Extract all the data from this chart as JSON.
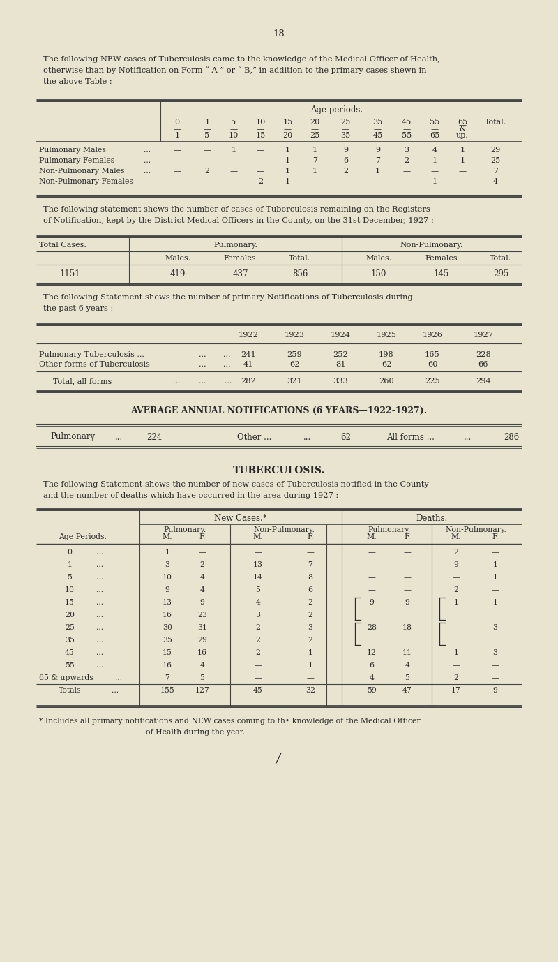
{
  "bg_color": "#e8e4d0",
  "text_color": "#2a2a2a",
  "page_number": "18",
  "intro_text1": "The following NEW cases of Tuberculosis came to the knowledge of the Medical Officer of Health,",
  "intro_text2": "otherwise than by Notification on Form “ A ” or “ B,” in addition to the primary cases shewn in",
  "intro_text3": "the above Table :—",
  "table1_age_header": "Age periods.",
  "table1_age_row1": [
    "0",
    "1",
    "5",
    "10",
    "15",
    "20",
    "25",
    "35",
    "45",
    "55",
    "65",
    "Total."
  ],
  "table1_age_row2": [
    "1",
    "5",
    "10",
    "15",
    "20",
    "25",
    "35",
    "45",
    "55",
    "65",
    "up."
  ],
  "table1_rows": [
    [
      "Pulmonary Males",
      "...",
      "—",
      "—",
      "1",
      "—",
      "1",
      "1",
      "9",
      "9",
      "3",
      "4",
      "1",
      "29"
    ],
    [
      "Pulmonary Females",
      "...",
      "—",
      "—",
      "—",
      "—",
      "1",
      "7",
      "6",
      "7",
      "2",
      "1",
      "1",
      "25"
    ],
    [
      "Non-Pulmonary Males",
      "...",
      "—",
      "2",
      "—",
      "—",
      "1",
      "1",
      "2",
      "1",
      "—",
      "—",
      "—",
      "7"
    ],
    [
      "Non-Pulmonary Females",
      "",
      "—",
      "—",
      "—",
      "2",
      "1",
      "—",
      "—",
      "—",
      "—",
      "1",
      "—",
      "4"
    ]
  ],
  "registers_text1": "The following statement shews the number of cases of Tuberculosis remaining on the Registers",
  "registers_text2": "of Notification, kept by the District Medical Officers in the County, on the 31st December, 1927 :—",
  "table2_values": [
    "1151",
    "419",
    "437",
    "856",
    "150",
    "145",
    "295"
  ],
  "years_text1": "The following Statement shews the number of primary Notifications of Tuberculosis during",
  "years_text2": "the past 6 years :—",
  "table3_years": [
    "1922",
    "1923",
    "1924",
    "1925",
    "1926",
    "1927"
  ],
  "table3_pul": [
    "241",
    "259",
    "252",
    "198",
    "165",
    "228"
  ],
  "table3_other": [
    "41",
    "62",
    "81",
    "62",
    "60",
    "66"
  ],
  "table3_total": [
    "282",
    "321",
    "333",
    "260",
    "225",
    "294"
  ],
  "avg_header": "AVERAGE ANNUAL NOTIFICATIONS (6 YEARS—1922-1927).",
  "tb_title": "TUBERCULOSIS.",
  "tb_text1": "The following Statement shows the number of new cases of Tuberculosis notified in the County",
  "tb_text2": "and the number of deaths which have occurred in the area during 1927 :—",
  "table4_age_periods": [
    "0",
    "1",
    "5",
    "10",
    "15",
    "20",
    "25",
    "35",
    "45",
    "55",
    "65 & upwards",
    "Totals"
  ],
  "table4_new_pul_m": [
    "1",
    "3",
    "10",
    "9",
    "13",
    "16",
    "30",
    "35",
    "15",
    "16",
    "7",
    "155"
  ],
  "table4_new_pul_f": [
    "—",
    "2",
    "4",
    "4",
    "9",
    "23",
    "31",
    "29",
    "16",
    "4",
    "5",
    "127"
  ],
  "table4_new_nonpul_m": [
    "—",
    "13",
    "14",
    "5",
    "4",
    "3",
    "2",
    "2",
    "2",
    "—",
    "—",
    "45"
  ],
  "table4_new_nonpul_f": [
    "—",
    "7",
    "8",
    "6",
    "2",
    "2",
    "3",
    "2",
    "1",
    "1",
    "—",
    "32"
  ],
  "table4_death_pul_m": [
    "—",
    "—",
    "—",
    "—",
    "9",
    "",
    "28",
    "",
    "12",
    "6",
    "4",
    "59"
  ],
  "table4_death_pul_f": [
    "—",
    "—",
    "—",
    "—",
    "9",
    "",
    "18",
    "",
    "11",
    "4",
    "5",
    "47"
  ],
  "table4_death_nonpul_m": [
    "2",
    "9",
    "—",
    "2",
    "1",
    "",
    "—",
    "",
    "1",
    "—",
    "2",
    "17"
  ],
  "table4_death_nonpul_f": [
    "—",
    "1",
    "1",
    "—",
    "1",
    "",
    "3",
    "",
    "3",
    "—",
    "—",
    "9"
  ],
  "footnote1": "* Includes all primary notifications and NEW cases coming to th• knowledge of the Medical Officer",
  "footnote2": "of Health during the year."
}
